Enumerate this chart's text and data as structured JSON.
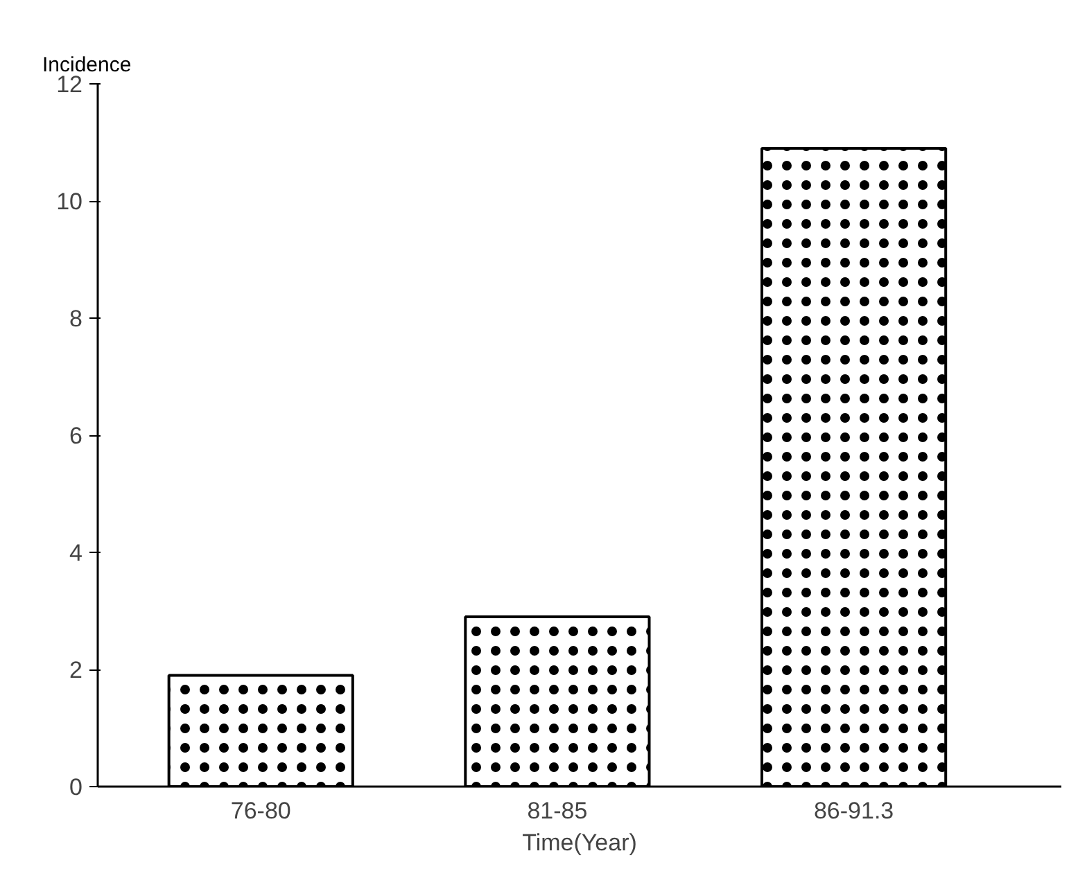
{
  "chart_data": {
    "type": "bar",
    "xlabel": "Time(Year)",
    "ylabel": "Incidence",
    "categories": [
      "76-80",
      "81-85",
      "86-91.3"
    ],
    "values": [
      1.9,
      2.9,
      10.9
    ],
    "color": "#ffffff",
    "ylim": [
      0,
      12
    ],
    "yticks": [
      0,
      2,
      4,
      6,
      8,
      10,
      12
    ],
    "grid": false
  }
}
